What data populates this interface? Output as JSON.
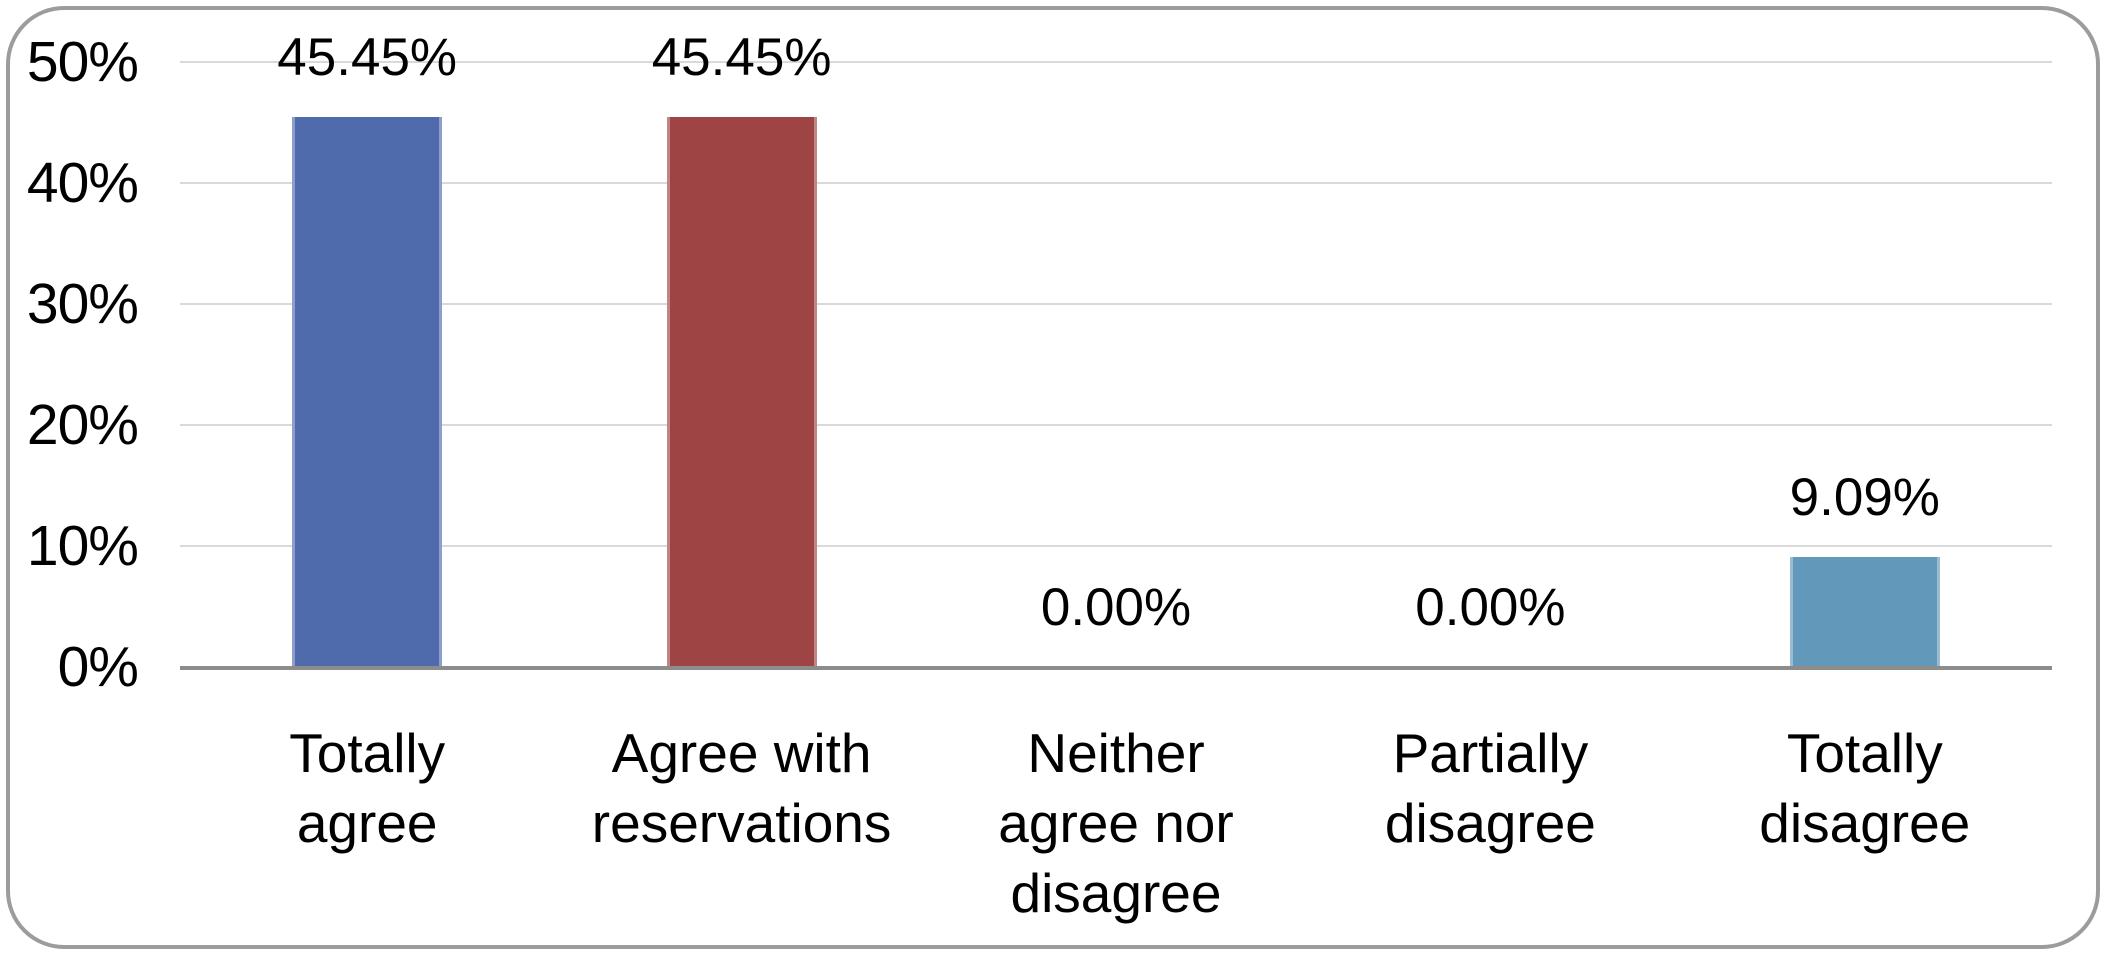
{
  "chart_data": {
    "type": "bar",
    "title": "",
    "xlabel": "",
    "ylabel": "",
    "categories": [
      "Totally\nagree",
      "Agree with\nreservations",
      "Neither\nagree nor\ndisagree",
      "Partially\ndisagree",
      "Totally\ndisagree"
    ],
    "values": [
      45.45,
      45.45,
      0.0,
      0.0,
      9.09
    ],
    "data_labels": [
      "45.45%",
      "45.45%",
      "0.00%",
      "0.00%",
      "9.09%"
    ],
    "bar_colors": [
      "#4f6bac",
      "#9e4444",
      null,
      null,
      "#6299bb"
    ],
    "y_ticks": [
      {
        "label": "50%",
        "value": 50
      },
      {
        "label": "40%",
        "value": 40
      },
      {
        "label": "30%",
        "value": 30
      },
      {
        "label": "20%",
        "value": 20
      },
      {
        "label": "10%",
        "value": 10
      },
      {
        "label": "0%",
        "value": 0
      }
    ],
    "ylim": [
      0,
      50
    ],
    "grid": true,
    "legend": false,
    "colors": {
      "gridline": "#d9d9d9",
      "axis_line": "#8c8c8c",
      "frame_border": "#9c9c9c",
      "text": "#000000",
      "background": "#ffffff"
    }
  }
}
